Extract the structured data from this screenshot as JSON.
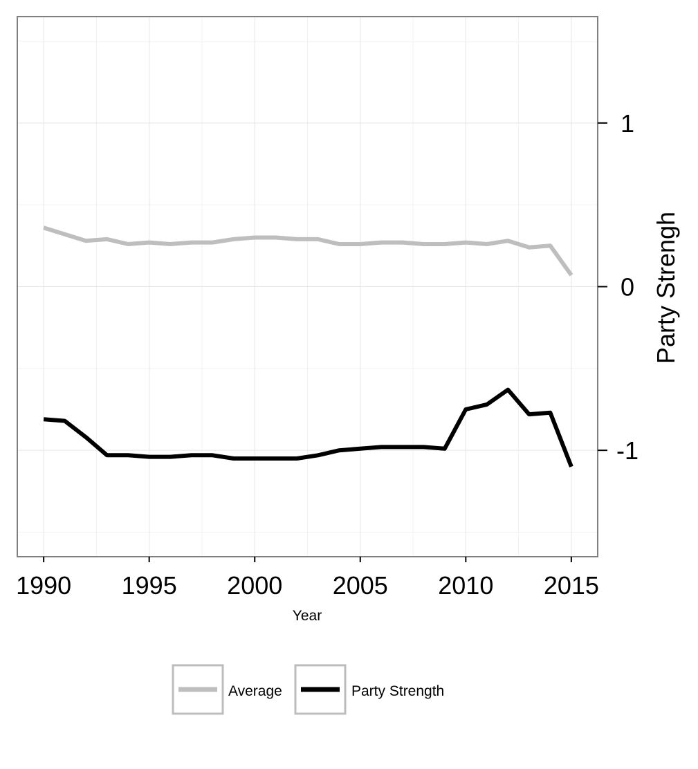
{
  "chart_data": {
    "type": "line",
    "xlabel": "Year",
    "ylabel": "Party Strengh",
    "xlim": [
      1988.75,
      2016.25
    ],
    "ylim": [
      -1.65,
      1.65
    ],
    "x_ticks": [
      1990,
      1995,
      2000,
      2005,
      2010,
      2015
    ],
    "y_ticks": [
      -1,
      0,
      1
    ],
    "y_axis_position": "right",
    "grid": true,
    "legend_position": "bottom",
    "x": [
      1990,
      1991,
      1992,
      1993,
      1994,
      1995,
      1996,
      1997,
      1998,
      1999,
      2000,
      2001,
      2002,
      2003,
      2004,
      2005,
      2006,
      2007,
      2008,
      2009,
      2010,
      2011,
      2012,
      2013,
      2014,
      2015
    ],
    "series": [
      {
        "name": "Average",
        "color": "#bebebe",
        "values": [
          0.36,
          0.32,
          0.28,
          0.29,
          0.26,
          0.27,
          0.26,
          0.27,
          0.27,
          0.29,
          0.3,
          0.3,
          0.29,
          0.29,
          0.26,
          0.26,
          0.27,
          0.27,
          0.26,
          0.26,
          0.27,
          0.26,
          0.28,
          0.24,
          0.25,
          0.07
        ]
      },
      {
        "name": "Party Strength",
        "color": "#000000",
        "values": [
          -0.81,
          -0.82,
          -0.92,
          -1.03,
          -1.03,
          -1.04,
          -1.04,
          -1.03,
          -1.03,
          -1.05,
          -1.05,
          -1.05,
          -1.05,
          -1.03,
          -1.0,
          -0.99,
          -0.98,
          -0.98,
          -0.98,
          -0.99,
          -0.75,
          -0.72,
          -0.63,
          -0.78,
          -0.77,
          -1.1
        ]
      }
    ]
  }
}
